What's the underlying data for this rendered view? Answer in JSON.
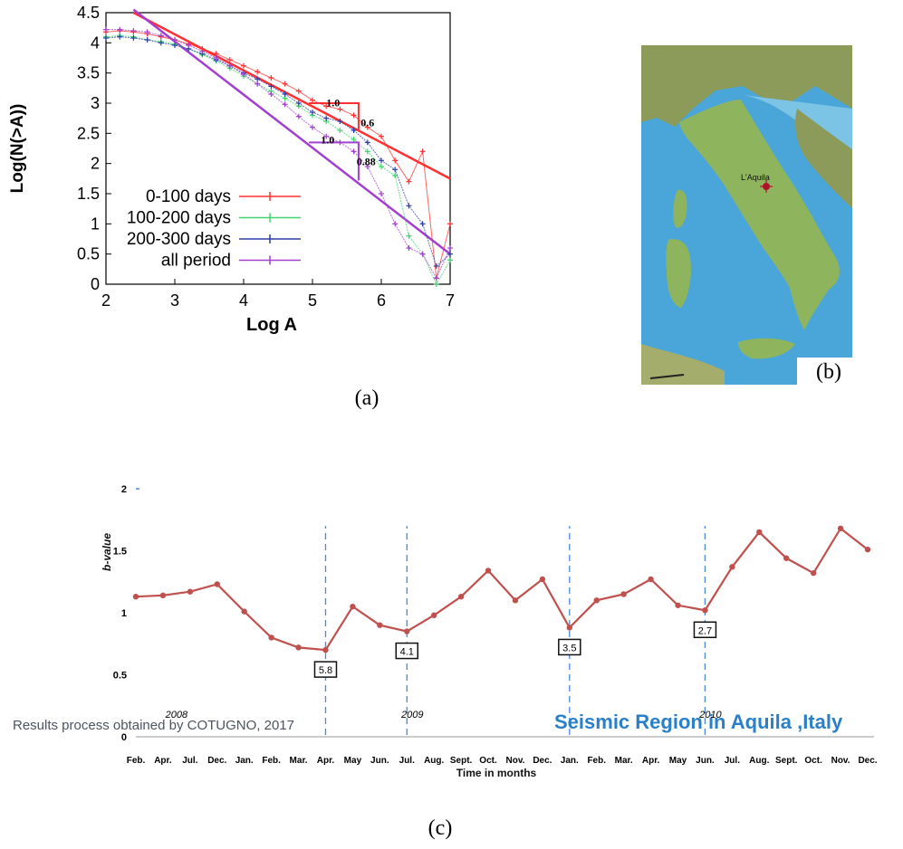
{
  "captions": {
    "a": "(a)",
    "b": "(b)",
    "c": "(c)"
  },
  "footer": {
    "left": "Results process obtained by  COTUGNO, 2017",
    "right": "Seismic  Region in Aquila ,Italy"
  },
  "colors": {
    "red": "#ff3030",
    "green": "#3fd46e",
    "blue": "#2b3fa8",
    "purple": "#a23fd0",
    "series_c": "#c0504d",
    "event_line": "#4a86d8",
    "footer_right": "#2a7fc9"
  },
  "map": {
    "label": "L'Aquila",
    "icon": "location-marker-icon"
  },
  "chart_data": [
    {
      "type": "line",
      "panel": "a",
      "xlabel": "Log A",
      "ylabel": "Log(N(>A))",
      "xlim": [
        2,
        7
      ],
      "ylim": [
        0,
        4.5
      ],
      "xticks": [
        "2",
        "3",
        "4",
        "5",
        "6",
        "7"
      ],
      "yticks": [
        "0",
        "0.5",
        "1",
        "1.5",
        "2",
        "2.5",
        "3",
        "3.5",
        "4",
        "4.5"
      ],
      "legend_position": "bottom-left",
      "series": [
        {
          "name": "0-100 days",
          "color": "#ff3030",
          "x": [
            2.0,
            2.2,
            2.4,
            2.6,
            2.8,
            3.0,
            3.2,
            3.4,
            3.6,
            3.8,
            4.0,
            4.2,
            4.4,
            4.6,
            4.8,
            5.0,
            5.2,
            5.4,
            5.6,
            5.8,
            6.0,
            6.2,
            6.4,
            6.6,
            6.8,
            7.0
          ],
          "y": [
            4.18,
            4.2,
            4.18,
            4.15,
            4.1,
            4.05,
            3.98,
            3.9,
            3.82,
            3.72,
            3.62,
            3.52,
            3.42,
            3.32,
            3.2,
            3.05,
            2.95,
            2.9,
            2.8,
            2.6,
            2.45,
            2.05,
            1.7,
            2.2,
            0.1,
            1.0
          ]
        },
        {
          "name": "100-200 days",
          "color": "#3fd46e",
          "x": [
            2.0,
            2.2,
            2.4,
            2.6,
            2.8,
            3.0,
            3.2,
            3.4,
            3.6,
            3.8,
            4.0,
            4.2,
            4.4,
            4.6,
            4.8,
            5.0,
            5.2,
            5.4,
            5.6,
            5.8,
            6.0,
            6.2,
            6.4,
            6.6,
            6.8,
            7.0
          ],
          "y": [
            4.1,
            4.12,
            4.1,
            4.05,
            4.02,
            3.98,
            3.9,
            3.8,
            3.7,
            3.58,
            3.45,
            3.32,
            3.2,
            3.08,
            2.95,
            2.8,
            2.7,
            2.55,
            2.4,
            2.2,
            1.95,
            1.8,
            0.8,
            0.5,
            0.0,
            0.4
          ]
        },
        {
          "name": "200-300 days",
          "color": "#2b3fa8",
          "x": [
            2.0,
            2.2,
            2.4,
            2.6,
            2.8,
            3.0,
            3.2,
            3.4,
            3.6,
            3.8,
            4.0,
            4.2,
            4.4,
            4.6,
            4.8,
            5.0,
            5.2,
            5.4,
            5.6,
            5.8,
            6.0,
            6.2,
            6.4,
            6.6,
            6.8,
            7.0
          ],
          "y": [
            4.08,
            4.1,
            4.08,
            4.05,
            4.0,
            3.96,
            3.9,
            3.82,
            3.72,
            3.62,
            3.5,
            3.4,
            3.28,
            3.15,
            3.0,
            2.85,
            2.75,
            2.7,
            2.55,
            2.35,
            2.05,
            1.9,
            1.3,
            1.0,
            0.3,
            0.5
          ]
        },
        {
          "name": "all period",
          "color": "#a23fd0",
          "x": [
            2.0,
            2.2,
            2.4,
            2.6,
            2.8,
            3.0,
            3.2,
            3.4,
            3.6,
            3.8,
            4.0,
            4.2,
            4.4,
            4.6,
            4.8,
            5.0,
            5.2,
            5.4,
            5.6,
            5.8,
            6.0,
            6.2,
            6.4,
            6.6,
            6.8,
            7.0
          ],
          "y": [
            4.22,
            4.22,
            4.2,
            4.18,
            4.12,
            4.05,
            3.96,
            3.86,
            3.75,
            3.62,
            3.48,
            3.32,
            3.15,
            2.98,
            2.78,
            2.6,
            2.45,
            2.35,
            2.2,
            1.95,
            1.5,
            1.0,
            0.6,
            0.5,
            0.1,
            0.6
          ]
        }
      ],
      "fit_lines": [
        {
          "color": "#ff3030",
          "x": [
            2.4,
            7.0
          ],
          "y": [
            4.5,
            1.75
          ]
        },
        {
          "color": "#a23fd0",
          "x": [
            2.4,
            7.0
          ],
          "y": [
            4.55,
            0.5
          ]
        }
      ],
      "annotations": [
        {
          "text": "1.0",
          "x": 5.3,
          "y": 2.95
        },
        {
          "text": "0.6",
          "x": 5.8,
          "y": 2.62
        },
        {
          "text": "1.0",
          "x": 5.22,
          "y": 2.33
        },
        {
          "text": "0.88",
          "x": 5.78,
          "y": 1.97
        }
      ],
      "slope_triangles": [
        {
          "color": "#ff3030",
          "x": [
            4.95,
            5.67,
            5.67
          ],
          "y": [
            3.0,
            3.0,
            2.56
          ]
        },
        {
          "color": "#a23fd0",
          "x": [
            4.95,
            5.67,
            5.67
          ],
          "y": [
            2.35,
            2.35,
            1.72
          ]
        }
      ]
    },
    {
      "type": "line",
      "panel": "c",
      "xlabel": "Time in months",
      "ylabel": "b-value",
      "ylim": [
        0,
        2
      ],
      "yticks": [
        "0",
        "0.5",
        "1",
        "1.5",
        "2"
      ],
      "categories": [
        "Feb.",
        "Apr.",
        "Jul.",
        "Dec.",
        "Jan.",
        "Feb.",
        "Mar.",
        "Apr.",
        "May",
        "Jun.",
        "Jul.",
        "Aug.",
        "Sept.",
        "Oct.",
        "Nov.",
        "Dec.",
        "Jan.",
        "Feb.",
        "Mar.",
        "Apr.",
        "May",
        "Jun.",
        "Jul.",
        "Aug.",
        "Sept.",
        "Oct.",
        "Nov.",
        "Dec."
      ],
      "series": [
        {
          "name": "",
          "color": "#c0504d",
          "values": [
            1.13,
            1.14,
            1.17,
            1.23,
            1.01,
            0.8,
            0.72,
            0.7,
            1.05,
            0.9,
            0.85,
            0.98,
            1.13,
            1.34,
            1.1,
            1.27,
            0.88,
            1.1,
            1.15,
            1.27,
            1.06,
            1.02,
            1.37,
            1.65,
            1.44,
            1.32,
            1.68,
            1.51
          ]
        }
      ],
      "events": [
        {
          "index": 7,
          "label": "5.8"
        },
        {
          "index": 10,
          "label": "4.1"
        },
        {
          "index": 16,
          "label": "3.5"
        },
        {
          "index": 21,
          "label": "2.7"
        }
      ],
      "year_labels": [
        {
          "text": "2008",
          "index": 1.5
        },
        {
          "text": "2009",
          "index": 10.2
        },
        {
          "text": "2010",
          "index": 21.2
        }
      ]
    }
  ]
}
